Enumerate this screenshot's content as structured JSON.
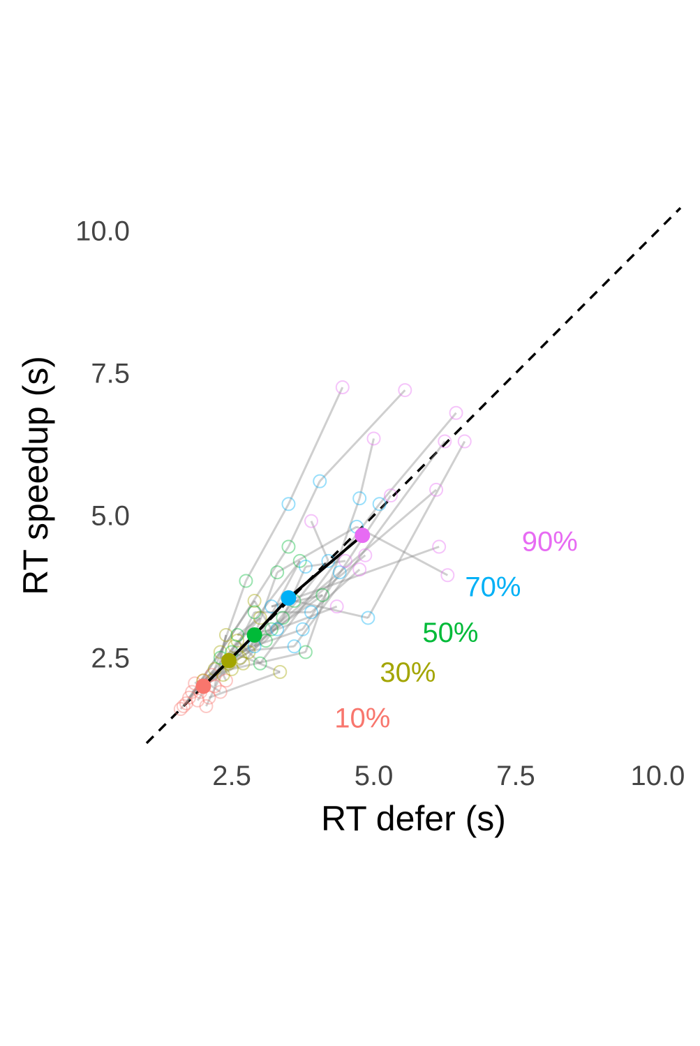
{
  "chart_data": {
    "type": "scatter",
    "xlabel": "RT defer (s)",
    "ylabel": "RT speedup (s)",
    "xlim": [
      1.0,
      10.4
    ],
    "ylim": [
      1.0,
      10.4
    ],
    "x_ticks": [
      2.5,
      5.0,
      7.5,
      10.0
    ],
    "y_ticks": [
      2.5,
      5.0,
      7.5,
      10.0
    ],
    "x_tick_labels": [
      "2.5",
      "5.0",
      "7.5",
      "10.0"
    ],
    "y_tick_labels": [
      "2.5",
      "5.0",
      "7.5",
      "10.0"
    ],
    "grid": false,
    "reference_line": {
      "style": "dashed",
      "color": "#000000",
      "from": [
        1.0,
        1.0
      ],
      "to": [
        10.4,
        10.4
      ]
    },
    "series": [
      {
        "name": "10%",
        "color": "#F8766D",
        "mean": {
          "x": 2.0,
          "y": 2.0
        },
        "label_at": {
          "x": 4.8,
          "y": 1.45
        },
        "points": [
          [
            1.6,
            1.6
          ],
          [
            1.7,
            1.7
          ],
          [
            1.8,
            1.9
          ],
          [
            1.9,
            1.75
          ],
          [
            2.0,
            2.1
          ],
          [
            2.1,
            1.8
          ],
          [
            2.2,
            2.0
          ],
          [
            1.65,
            1.65
          ],
          [
            2.3,
            1.9
          ],
          [
            1.85,
            2.05
          ],
          [
            2.05,
            1.65
          ],
          [
            2.4,
            2.1
          ],
          [
            1.75,
            1.8
          ],
          [
            2.15,
            2.2
          ],
          [
            1.95,
            1.9
          ]
        ]
      },
      {
        "name": "30%",
        "color": "#A3A500",
        "mean": {
          "x": 2.45,
          "y": 2.45
        },
        "label_at": {
          "x": 5.6,
          "y": 2.25
        },
        "points": [
          [
            2.2,
            2.3
          ],
          [
            2.3,
            2.6
          ],
          [
            2.5,
            2.3
          ],
          [
            2.6,
            2.8
          ],
          [
            2.7,
            2.4
          ],
          [
            3.35,
            2.25
          ],
          [
            2.4,
            2.9
          ],
          [
            2.9,
            3.5
          ],
          [
            2.0,
            2.1
          ],
          [
            2.8,
            2.6
          ],
          [
            2.55,
            2.7
          ],
          [
            2.35,
            2.2
          ],
          [
            3.0,
            3.2
          ],
          [
            2.65,
            2.5
          ],
          [
            2.45,
            2.4
          ]
        ]
      },
      {
        "name": "50%",
        "color": "#00BA38",
        "mean": {
          "x": 2.9,
          "y": 2.9
        },
        "label_at": {
          "x": 6.35,
          "y": 2.95
        },
        "points": [
          [
            2.75,
            3.85
          ],
          [
            3.5,
            4.45
          ],
          [
            3.8,
            2.6
          ],
          [
            3.0,
            2.4
          ],
          [
            3.6,
            3.5
          ],
          [
            2.5,
            2.6
          ],
          [
            2.3,
            2.5
          ],
          [
            3.2,
            3.0
          ],
          [
            4.1,
            3.6
          ],
          [
            3.3,
            4.0
          ],
          [
            3.7,
            4.2
          ],
          [
            2.9,
            3.3
          ],
          [
            2.6,
            2.9
          ],
          [
            3.1,
            2.8
          ],
          [
            3.4,
            3.2
          ]
        ]
      },
      {
        "name": "70%",
        "color": "#00B0F6",
        "mean": {
          "x": 3.5,
          "y": 3.55
        },
        "label_at": {
          "x": 7.1,
          "y": 3.75
        },
        "points": [
          [
            3.5,
            5.2
          ],
          [
            4.05,
            5.6
          ],
          [
            4.75,
            5.3
          ],
          [
            5.1,
            5.2
          ],
          [
            4.9,
            3.2
          ],
          [
            3.6,
            2.7
          ],
          [
            3.75,
            3.0
          ],
          [
            4.4,
            4.0
          ],
          [
            3.2,
            3.4
          ],
          [
            4.7,
            4.8
          ],
          [
            2.9,
            2.7
          ],
          [
            3.9,
            3.3
          ],
          [
            3.3,
            3.0
          ],
          [
            4.2,
            4.2
          ],
          [
            3.8,
            4.1
          ]
        ]
      },
      {
        "name": "90%",
        "color": "#E76BF3",
        "mean": {
          "x": 4.8,
          "y": 4.65
        },
        "label_at": {
          "x": 8.1,
          "y": 4.55
        },
        "points": [
          [
            4.45,
            7.25
          ],
          [
            5.55,
            7.2
          ],
          [
            5.0,
            6.35
          ],
          [
            6.45,
            6.8
          ],
          [
            6.6,
            6.3
          ],
          [
            6.25,
            6.3
          ],
          [
            5.3,
            5.35
          ],
          [
            6.1,
            5.45
          ],
          [
            6.15,
            4.45
          ],
          [
            6.3,
            3.95
          ],
          [
            4.85,
            4.3
          ],
          [
            4.75,
            4.05
          ],
          [
            4.35,
            3.4
          ],
          [
            3.9,
            4.9
          ],
          [
            4.5,
            4.2
          ]
        ]
      }
    ]
  }
}
